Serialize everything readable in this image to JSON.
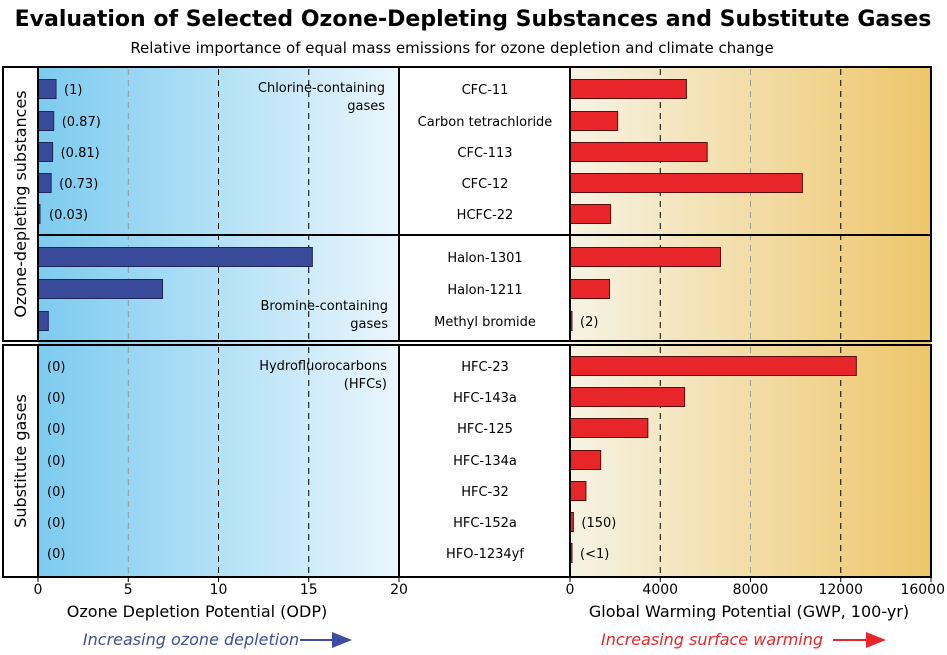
{
  "chart_data": {
    "type": "bar",
    "title": "Evaluation of Selected Ozone-Depleting Substances and Substitute Gases",
    "subtitle": "Relative importance of equal mass emissions for ozone depletion and climate change",
    "group_labels": [
      "Ozone-depleting substances",
      "Substitute gases"
    ],
    "section_notes": [
      "Chlorine-containing gases",
      "Bromine-containing gases",
      "Hydrofluorocarbons (HFCs)"
    ],
    "gases": [
      {
        "name": "CFC-11",
        "odp": 1,
        "odp_label": "(1)",
        "gwp": 5160,
        "gwp_label": ""
      },
      {
        "name": "Carbon tetrachloride",
        "odp": 0.87,
        "odp_label": "(0.87)",
        "gwp": 2110,
        "gwp_label": ""
      },
      {
        "name": "CFC-113",
        "odp": 0.81,
        "odp_label": "(0.81)",
        "gwp": 6080,
        "gwp_label": ""
      },
      {
        "name": "CFC-12",
        "odp": 0.73,
        "odp_label": "(0.73)",
        "gwp": 10300,
        "gwp_label": ""
      },
      {
        "name": "HCFC-22",
        "odp": 0.03,
        "odp_label": "(0.03)",
        "gwp": 1800,
        "gwp_label": ""
      },
      {
        "name": "Halon-1301",
        "odp": 15.2,
        "odp_label": "",
        "gwp": 6670,
        "gwp_label": ""
      },
      {
        "name": "Halon-1211",
        "odp": 6.9,
        "odp_label": "",
        "gwp": 1750,
        "gwp_label": ""
      },
      {
        "name": "Methyl bromide",
        "odp": 0.57,
        "odp_label": "",
        "gwp": 2,
        "gwp_label": "(2)"
      },
      {
        "name": "HFC-23",
        "odp": 0,
        "odp_label": "(0)",
        "gwp": 12690,
        "gwp_label": ""
      },
      {
        "name": "HFC-143a",
        "odp": 0,
        "odp_label": "(0)",
        "gwp": 5080,
        "gwp_label": ""
      },
      {
        "name": "HFC-125",
        "odp": 0,
        "odp_label": "(0)",
        "gwp": 3450,
        "gwp_label": ""
      },
      {
        "name": "HFC-134a",
        "odp": 0,
        "odp_label": "(0)",
        "gwp": 1360,
        "gwp_label": ""
      },
      {
        "name": "HFC-32",
        "odp": 0,
        "odp_label": "(0)",
        "gwp": 705,
        "gwp_label": ""
      },
      {
        "name": "HFC-152a",
        "odp": 0,
        "odp_label": "(0)",
        "gwp": 150,
        "gwp_label": "(150)"
      },
      {
        "name": "HFO-1234yf",
        "odp": 0,
        "odp_label": "(0)",
        "gwp": 0.5,
        "gwp_label": "(<1)"
      }
    ],
    "odp_axis": {
      "label": "Ozone Depletion Potential (ODP)",
      "range": [
        0,
        20
      ],
      "ticks": [
        0,
        5,
        10,
        15,
        20
      ],
      "tick_labels": [
        "0",
        "5",
        "10",
        "15",
        "20"
      ],
      "note": "Increasing ozone depletion"
    },
    "gwp_axis": {
      "label": "Global Warming Potential (GWP, 100-yr)",
      "range": [
        0,
        16000
      ],
      "ticks": [
        0,
        4000,
        8000,
        12000,
        16000
      ],
      "tick_labels": [
        "0",
        "4000",
        "8000",
        "12000",
        "16000"
      ],
      "note": "Increasing surface warming"
    },
    "colors": {
      "odp_bar": "#3a4a9a",
      "gwp_bar": "#e8262a",
      "odp_note": "#3d4ea0",
      "gwp_note": "#e8262a"
    }
  }
}
